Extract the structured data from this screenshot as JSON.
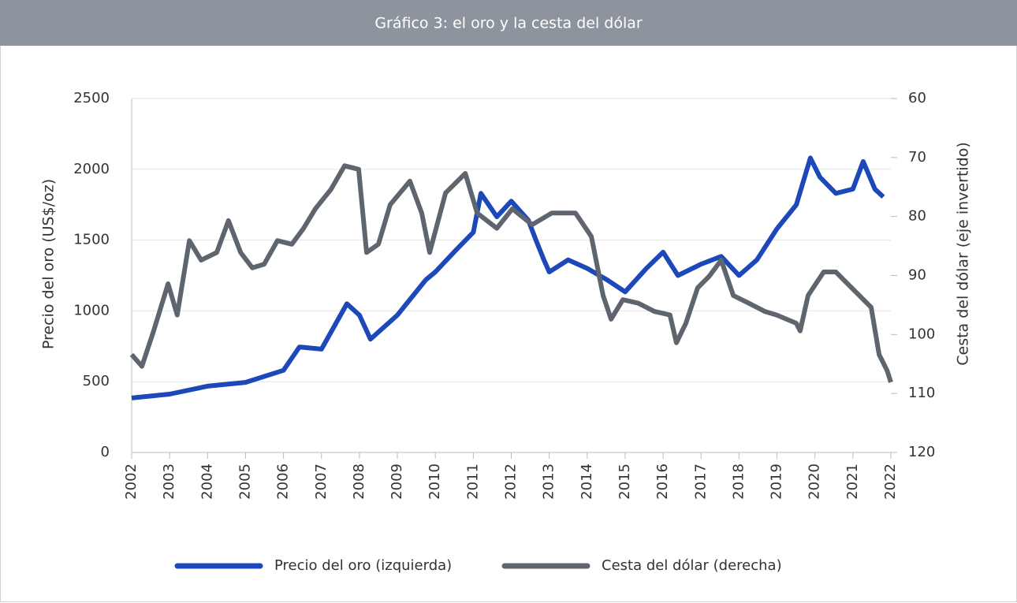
{
  "chart_data": {
    "type": "line",
    "title": "Gráfico 3: el oro y la cesta del dólar",
    "ylabel": "Precio del oro (US$/oz)",
    "y2label": "Cesta del dólar (eje invertido)",
    "xlim": [
      2002,
      2022
    ],
    "xticks": [
      2002,
      2003,
      2004,
      2005,
      2006,
      2007,
      2008,
      2009,
      2010,
      2011,
      2012,
      2013,
      2014,
      2015,
      2016,
      2017,
      2018,
      2019,
      2020,
      2021,
      2022
    ],
    "ylim": [
      0,
      2500
    ],
    "yticks": [
      0,
      500,
      1000,
      1500,
      2000,
      2500
    ],
    "y2lim": [
      60,
      120
    ],
    "y2ticks": [
      60,
      70,
      80,
      90,
      100,
      110,
      120
    ],
    "y2_inverted": true,
    "grid": true,
    "legend": "bottom",
    "series": [
      {
        "name": "Precio del oro (izquierda)",
        "color": "#1c48ba",
        "x": [
          2002.0,
          2003.0,
          2004.0,
          2005.0,
          2006.0,
          2006.42,
          2007.0,
          2007.67,
          2008.0,
          2008.29,
          2009.0,
          2009.75,
          2010.0,
          2010.58,
          2011.0,
          2011.2,
          2011.62,
          2012.0,
          2012.45,
          2012.65,
          2012.86,
          2013.0,
          2013.5,
          2014.0,
          2014.52,
          2015.0,
          2015.56,
          2016.0,
          2016.39,
          2017.0,
          2017.53,
          2018.0,
          2018.47,
          2019.0,
          2019.51,
          2019.88,
          2020.13,
          2020.55,
          2021.0,
          2021.27,
          2021.58,
          2021.8
        ],
        "values": [
          385,
          412,
          468,
          495,
          580,
          745,
          730,
          1050,
          970,
          800,
          970,
          1220,
          1275,
          1440,
          1555,
          1830,
          1665,
          1775,
          1640,
          1500,
          1360,
          1275,
          1360,
          1300,
          1220,
          1135,
          1300,
          1415,
          1250,
          1330,
          1385,
          1250,
          1360,
          1580,
          1750,
          2080,
          1945,
          1830,
          1860,
          2055,
          1860,
          1805
        ]
      },
      {
        "name": "Cesta del dólar (derecha)",
        "color": "#5e656e",
        "axis": "y2",
        "x": [
          2002.0,
          2002.27,
          2002.58,
          2002.96,
          2003.2,
          2003.52,
          2003.83,
          2004.24,
          2004.55,
          2004.87,
          2005.18,
          2005.49,
          2005.84,
          2006.22,
          2006.53,
          2006.84,
          2007.25,
          2007.61,
          2007.98,
          2008.19,
          2008.5,
          2008.81,
          2009.33,
          2009.64,
          2009.85,
          2010.27,
          2010.79,
          2011.1,
          2011.62,
          2012.03,
          2012.55,
          2013.07,
          2013.69,
          2014.11,
          2014.42,
          2014.63,
          2014.94,
          2015.35,
          2015.77,
          2016.18,
          2016.35,
          2016.6,
          2016.91,
          2017.22,
          2017.53,
          2017.85,
          2018.26,
          2018.68,
          2018.99,
          2019.51,
          2019.61,
          2019.82,
          2020.23,
          2020.55,
          2020.86,
          2021.17,
          2021.48,
          2021.69,
          2021.9,
          2022.0
        ],
        "values": [
          103.4,
          105.4,
          99.4,
          91.4,
          96.7,
          84.1,
          87.4,
          86.1,
          80.7,
          86.1,
          88.7,
          88.1,
          84.1,
          84.7,
          82.0,
          78.7,
          75.4,
          71.4,
          72.0,
          86.1,
          84.7,
          78.0,
          74.0,
          79.4,
          86.1,
          76.0,
          72.7,
          79.4,
          82.0,
          78.7,
          81.4,
          79.4,
          79.4,
          83.4,
          93.4,
          97.4,
          94.1,
          94.7,
          96.1,
          96.7,
          101.4,
          98.1,
          92.1,
          90.1,
          87.4,
          93.4,
          94.7,
          96.1,
          96.7,
          98.1,
          99.4,
          93.4,
          89.4,
          89.4,
          91.4,
          93.4,
          95.4,
          103.4,
          106.1,
          108.1
        ]
      }
    ]
  }
}
